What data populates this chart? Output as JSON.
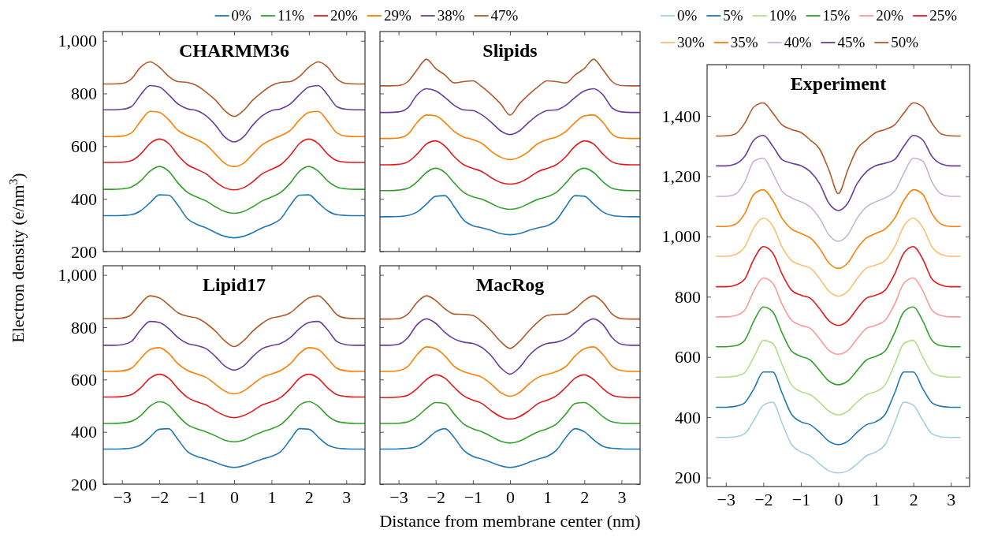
{
  "chart_data": [
    {
      "type": "line",
      "title": "CHARMM36",
      "ylabel": "Electron density (e/nm$^{3}$)",
      "legend": "top",
      "tick_labels": "y",
      "xlim": [
        -3.5,
        3.5
      ],
      "ylim": [
        200,
        1035
      ],
      "xticks": [
        -3,
        -2,
        -1,
        0,
        1,
        2,
        3
      ],
      "yticks": [
        200,
        400,
        600,
        800,
        {
          "value": 1000,
          "label": "1,000"
        }
      ],
      "x": [
        -3.5,
        -3.25,
        -3,
        -2.75,
        -2.5,
        -2.25,
        -2,
        -1.75,
        -1.5,
        -1.25,
        -1,
        -0.75,
        -0.5,
        -0.25,
        0,
        0.25,
        0.5,
        0.75,
        1,
        1.25,
        1.5,
        1.75,
        2,
        2.25,
        2.5,
        2.75,
        3,
        3.25,
        3.5
      ],
      "series": [
        {
          "name": "0%",
          "color": "#1f78b4",
          "values": [
            336,
            336,
            337,
            340,
            355,
            385,
            415,
            414,
            375,
            325,
            303,
            290,
            272,
            258,
            252,
            258,
            272,
            290,
            303,
            325,
            375,
            414,
            415,
            385,
            355,
            340,
            337,
            336,
            336
          ]
        },
        {
          "name": "11%",
          "color": "#33a02c",
          "values": [
            436,
            436,
            438,
            445,
            468,
            505,
            523,
            505,
            460,
            425,
            407,
            392,
            370,
            352,
            345,
            352,
            370,
            392,
            407,
            425,
            460,
            505,
            523,
            505,
            468,
            445,
            438,
            436,
            436
          ]
        },
        {
          "name": "20%",
          "color": "#e31a1c",
          "values": [
            538,
            538,
            539,
            545,
            570,
            610,
            627,
            610,
            565,
            530,
            512,
            495,
            465,
            442,
            434,
            442,
            465,
            495,
            512,
            530,
            565,
            610,
            627,
            610,
            570,
            545,
            539,
            538,
            538
          ]
        },
        {
          "name": "29%",
          "color": "#ff7f00",
          "values": [
            636,
            636,
            638,
            650,
            695,
            732,
            728,
            700,
            660,
            640,
            625,
            605,
            570,
            535,
            523,
            535,
            570,
            605,
            625,
            640,
            660,
            700,
            728,
            732,
            695,
            650,
            638,
            636,
            636
          ]
        },
        {
          "name": "38%",
          "color": "#6a3d9a",
          "values": [
            738,
            738,
            740,
            750,
            795,
            830,
            825,
            795,
            760,
            742,
            735,
            715,
            680,
            635,
            616,
            635,
            680,
            715,
            735,
            742,
            760,
            795,
            825,
            830,
            795,
            750,
            740,
            738,
            738
          ]
        },
        {
          "name": "47%",
          "color": "#b15928",
          "values": [
            836,
            836,
            838,
            855,
            900,
            920,
            900,
            865,
            845,
            842,
            830,
            805,
            775,
            735,
            713,
            735,
            775,
            805,
            830,
            842,
            845,
            865,
            900,
            920,
            900,
            855,
            838,
            836,
            836
          ]
        }
      ]
    },
    {
      "type": "line",
      "title": "Slipids",
      "tick_labels": false,
      "xlim": [
        -3.5,
        3.5
      ],
      "ylim": [
        200,
        1035
      ],
      "xticks": [
        -3,
        -2,
        -1,
        0,
        1,
        2,
        3
      ],
      "yticks": [
        200,
        400,
        600,
        800,
        1000
      ],
      "x": [
        -3.5,
        -3.25,
        -3,
        -2.75,
        -2.5,
        -2.25,
        -2,
        -1.75,
        -1.5,
        -1.25,
        -1,
        -0.75,
        -0.5,
        -0.25,
        0,
        0.25,
        0.5,
        0.75,
        1,
        1.25,
        1.5,
        1.75,
        2,
        2.25,
        2.5,
        2.75,
        3,
        3.25,
        3.5
      ],
      "series": [
        {
          "color": "#1f78b4",
          "values": [
            332,
            332,
            333,
            337,
            350,
            380,
            410,
            412,
            370,
            320,
            298,
            290,
            280,
            268,
            264,
            268,
            280,
            290,
            298,
            320,
            370,
            412,
            410,
            380,
            350,
            337,
            333,
            332,
            332
          ]
        },
        {
          "color": "#33a02c",
          "values": [
            431,
            431,
            433,
            440,
            465,
            500,
            516,
            500,
            460,
            425,
            408,
            398,
            382,
            366,
            360,
            366,
            382,
            398,
            408,
            425,
            460,
            500,
            516,
            500,
            465,
            440,
            433,
            431,
            431
          ]
        },
        {
          "color": "#e31a1c",
          "values": [
            529,
            529,
            531,
            540,
            570,
            608,
            620,
            600,
            560,
            530,
            516,
            503,
            480,
            462,
            456,
            462,
            480,
            503,
            516,
            530,
            560,
            600,
            620,
            608,
            570,
            540,
            531,
            529,
            529
          ]
        },
        {
          "color": "#ff7f00",
          "values": [
            629,
            629,
            631,
            645,
            690,
            718,
            715,
            690,
            655,
            635,
            625,
            610,
            580,
            558,
            549,
            558,
            580,
            610,
            625,
            635,
            655,
            690,
            715,
            718,
            690,
            645,
            631,
            629,
            629
          ]
        },
        {
          "color": "#6a3d9a",
          "values": [
            728,
            728,
            730,
            745,
            795,
            818,
            810,
            785,
            755,
            738,
            735,
            718,
            690,
            658,
            644,
            658,
            690,
            718,
            735,
            738,
            755,
            785,
            810,
            818,
            795,
            745,
            730,
            728,
            728
          ]
        },
        {
          "color": "#b15928",
          "values": [
            829,
            829,
            830,
            845,
            890,
            930,
            895,
            870,
            840,
            845,
            848,
            825,
            795,
            760,
            718,
            760,
            795,
            825,
            848,
            845,
            840,
            870,
            895,
            930,
            890,
            845,
            830,
            829,
            829
          ]
        }
      ]
    },
    {
      "type": "line",
      "title": "Lipid17",
      "xlabel": "Distance from membrane center (nm)",
      "xlim": [
        -3.5,
        3.5
      ],
      "ylim": [
        200,
        1035
      ],
      "xticks": [
        {
          "value": -3,
          "label": "−3"
        },
        {
          "value": -2,
          "label": "−2"
        },
        {
          "value": -1,
          "label": "−1"
        },
        0,
        1,
        2,
        3
      ],
      "yticks": [
        200,
        400,
        600,
        800,
        {
          "value": 1000,
          "label": "1,000"
        }
      ],
      "x": [
        -3.5,
        -3.25,
        -3,
        -2.75,
        -2.5,
        -2.25,
        -2,
        -1.75,
        -1.5,
        -1.25,
        -1,
        -0.75,
        -0.5,
        -0.25,
        0,
        0.25,
        0.5,
        0.75,
        1,
        1.25,
        1.5,
        1.75,
        2,
        2.25,
        2.5,
        2.75,
        3,
        3.25,
        3.5
      ],
      "series": [
        {
          "color": "#1f78b4",
          "values": [
            334,
            334,
            335,
            338,
            350,
            380,
            410,
            412,
            370,
            325,
            306,
            296,
            283,
            270,
            264,
            270,
            283,
            296,
            306,
            325,
            370,
            412,
            410,
            380,
            350,
            338,
            335,
            334,
            334
          ]
        },
        {
          "color": "#33a02c",
          "values": [
            432,
            432,
            434,
            440,
            462,
            498,
            515,
            502,
            462,
            428,
            412,
            400,
            385,
            368,
            362,
            368,
            385,
            400,
            412,
            428,
            462,
            502,
            515,
            498,
            462,
            440,
            434,
            432,
            432
          ]
        },
        {
          "color": "#e31a1c",
          "values": [
            533,
            533,
            535,
            542,
            568,
            605,
            620,
            605,
            565,
            532,
            515,
            503,
            480,
            462,
            454,
            462,
            480,
            503,
            515,
            532,
            565,
            605,
            620,
            605,
            568,
            542,
            535,
            533,
            533
          ]
        },
        {
          "color": "#ff7f00",
          "values": [
            631,
            631,
            633,
            643,
            680,
            715,
            722,
            700,
            660,
            635,
            621,
            608,
            582,
            556,
            545,
            556,
            582,
            608,
            621,
            635,
            660,
            700,
            722,
            715,
            680,
            643,
            633,
            631,
            631
          ]
        },
        {
          "color": "#6a3d9a",
          "values": [
            731,
            731,
            733,
            745,
            790,
            822,
            818,
            795,
            760,
            738,
            730,
            718,
            688,
            652,
            636,
            652,
            688,
            718,
            730,
            738,
            760,
            795,
            818,
            822,
            790,
            745,
            733,
            731,
            731
          ]
        },
        {
          "color": "#b15928",
          "values": [
            833,
            833,
            835,
            848,
            890,
            920,
            912,
            885,
            855,
            842,
            835,
            815,
            785,
            748,
            726,
            748,
            785,
            815,
            835,
            842,
            855,
            885,
            912,
            920,
            890,
            848,
            835,
            833,
            833
          ]
        }
      ]
    },
    {
      "type": "line",
      "title": "MacRog",
      "tick_labels": "x",
      "xlim": [
        -3.5,
        3.5
      ],
      "ylim": [
        200,
        1035
      ],
      "xticks": [
        {
          "value": -3,
          "label": "−3"
        },
        {
          "value": -2,
          "label": "−2"
        },
        {
          "value": -1,
          "label": "−1"
        },
        0,
        1,
        2,
        3
      ],
      "yticks": [
        200,
        400,
        600,
        800,
        1000
      ],
      "x": [
        -3.5,
        -3.25,
        -3,
        -2.75,
        -2.5,
        -2.25,
        -2,
        -1.75,
        -1.5,
        -1.25,
        -1,
        -0.75,
        -0.5,
        -0.25,
        0,
        0.25,
        0.5,
        0.75,
        1,
        1.25,
        1.5,
        1.75,
        2,
        2.25,
        2.5,
        2.75,
        3,
        3.25,
        3.5
      ],
      "series": [
        {
          "color": "#1f78b4",
          "values": [
            334,
            334,
            335,
            337,
            345,
            370,
            400,
            412,
            378,
            330,
            306,
            296,
            283,
            270,
            264,
            270,
            283,
            296,
            306,
            330,
            378,
            412,
            400,
            370,
            345,
            337,
            335,
            334,
            334
          ]
        },
        {
          "color": "#33a02c",
          "values": [
            432,
            432,
            433,
            438,
            458,
            490,
            512,
            508,
            468,
            430,
            412,
            400,
            382,
            364,
            357,
            364,
            382,
            400,
            412,
            430,
            468,
            508,
            512,
            490,
            458,
            438,
            433,
            432,
            432
          ]
        },
        {
          "color": "#e31a1c",
          "values": [
            531,
            531,
            533,
            540,
            565,
            600,
            618,
            605,
            570,
            538,
            521,
            508,
            480,
            458,
            449,
            458,
            480,
            508,
            521,
            538,
            570,
            605,
            618,
            600,
            565,
            540,
            533,
            531,
            531
          ]
        },
        {
          "color": "#ff7f00",
          "values": [
            631,
            631,
            634,
            650,
            695,
            725,
            718,
            690,
            650,
            630,
            620,
            608,
            582,
            550,
            536,
            550,
            582,
            608,
            620,
            630,
            650,
            690,
            718,
            725,
            695,
            650,
            634,
            631,
            631
          ]
        },
        {
          "color": "#6a3d9a",
          "values": [
            731,
            731,
            735,
            760,
            810,
            832,
            815,
            780,
            755,
            743,
            738,
            722,
            690,
            645,
            621,
            645,
            690,
            722,
            738,
            743,
            755,
            780,
            815,
            832,
            810,
            760,
            735,
            731,
            731
          ]
        },
        {
          "color": "#b15928",
          "values": [
            831,
            831,
            833,
            850,
            895,
            920,
            902,
            870,
            850,
            849,
            845,
            820,
            785,
            745,
            719,
            745,
            785,
            820,
            845,
            849,
            850,
            870,
            902,
            920,
            895,
            850,
            833,
            831,
            831
          ]
        }
      ]
    },
    {
      "type": "line",
      "title": "Experiment",
      "legend": "top",
      "xlim": [
        -3.5,
        3.5
      ],
      "ylim": [
        170,
        1570
      ],
      "xticks": [
        {
          "value": -3,
          "label": "−3"
        },
        {
          "value": -2,
          "label": "−2"
        },
        {
          "value": -1,
          "label": "−1"
        },
        0,
        1,
        2,
        3
      ],
      "yticks": [
        200,
        400,
        600,
        800,
        {
          "value": 1000,
          "label": "1,000"
        },
        {
          "value": 1200,
          "label": "1,200"
        },
        {
          "value": 1400,
          "label": "1,400"
        }
      ],
      "x": [
        -3.25,
        -3,
        -2.75,
        -2.5,
        -2.25,
        -2,
        -1.75,
        -1.5,
        -1.25,
        -1,
        -0.75,
        -0.5,
        -0.25,
        0,
        0.25,
        0.5,
        0.75,
        1,
        1.25,
        1.5,
        1.75,
        2,
        2.25,
        2.5,
        2.75,
        3,
        3.25
      ],
      "series": [
        {
          "name": "0%",
          "color": "#a6cee3",
          "values": [
            333,
            333,
            335,
            345,
            390,
            440,
            450,
            380,
            310,
            285,
            272,
            245,
            222,
            215,
            222,
            245,
            272,
            285,
            310,
            380,
            450,
            440,
            390,
            345,
            335,
            333,
            333
          ]
        },
        {
          "name": "5%",
          "color": "#1f78b4",
          "values": [
            433,
            433,
            436,
            448,
            495,
            550,
            550,
            480,
            410,
            385,
            375,
            350,
            320,
            309,
            320,
            350,
            375,
            385,
            410,
            480,
            550,
            550,
            495,
            448,
            436,
            433,
            433
          ]
        },
        {
          "name": "10%",
          "color": "#b2df8a",
          "values": [
            533,
            533,
            536,
            548,
            600,
            655,
            645,
            575,
            508,
            485,
            475,
            450,
            420,
            408,
            420,
            450,
            475,
            485,
            508,
            575,
            645,
            655,
            600,
            548,
            536,
            533,
            533
          ]
        },
        {
          "name": "15%",
          "color": "#33a02c",
          "values": [
            634,
            634,
            637,
            655,
            720,
            766,
            750,
            680,
            620,
            602,
            590,
            555,
            520,
            508,
            520,
            555,
            590,
            602,
            620,
            680,
            750,
            766,
            720,
            655,
            637,
            634,
            634
          ]
        },
        {
          "name": "20%",
          "color": "#fb9a99",
          "values": [
            733,
            733,
            737,
            755,
            820,
            862,
            845,
            775,
            722,
            705,
            695,
            660,
            622,
            609,
            622,
            660,
            695,
            705,
            722,
            775,
            845,
            862,
            820,
            755,
            737,
            733,
            733
          ]
        },
        {
          "name": "25%",
          "color": "#e31a1c",
          "values": [
            833,
            833,
            838,
            858,
            925,
            966,
            945,
            875,
            822,
            805,
            795,
            760,
            720,
            705,
            720,
            760,
            795,
            805,
            822,
            875,
            945,
            966,
            925,
            858,
            838,
            833,
            833
          ]
        },
        {
          "name": "30%",
          "color": "#fdbf6f",
          "values": [
            934,
            934,
            940,
            965,
            1030,
            1061,
            1035,
            965,
            920,
            905,
            895,
            860,
            818,
            802,
            818,
            860,
            895,
            905,
            920,
            965,
            1035,
            1061,
            1030,
            965,
            940,
            934,
            934
          ]
        },
        {
          "name": "35%",
          "color": "#ff7f00",
          "values": [
            1033,
            1033,
            1040,
            1075,
            1140,
            1155,
            1120,
            1060,
            1025,
            1010,
            995,
            960,
            912,
            894,
            912,
            960,
            995,
            1010,
            1025,
            1060,
            1120,
            1155,
            1140,
            1075,
            1040,
            1033,
            1033
          ]
        },
        {
          "name": "40%",
          "color": "#cab2d6",
          "values": [
            1133,
            1133,
            1140,
            1180,
            1250,
            1260,
            1210,
            1150,
            1128,
            1115,
            1098,
            1060,
            1005,
            984,
            1005,
            1060,
            1098,
            1115,
            1128,
            1150,
            1210,
            1260,
            1250,
            1180,
            1140,
            1133,
            1133
          ]
        },
        {
          "name": "45%",
          "color": "#6a3d9a",
          "values": [
            1234,
            1234,
            1240,
            1265,
            1320,
            1335,
            1300,
            1255,
            1243,
            1235,
            1215,
            1175,
            1110,
            1086,
            1110,
            1175,
            1215,
            1235,
            1243,
            1255,
            1300,
            1335,
            1320,
            1265,
            1240,
            1234,
            1234
          ]
        },
        {
          "name": "50%",
          "color": "#b15928",
          "values": [
            1333,
            1334,
            1340,
            1375,
            1430,
            1443,
            1410,
            1370,
            1355,
            1345,
            1320,
            1290,
            1220,
            1142,
            1220,
            1290,
            1320,
            1345,
            1355,
            1370,
            1410,
            1443,
            1430,
            1375,
            1340,
            1334,
            1333
          ]
        }
      ]
    }
  ]
}
